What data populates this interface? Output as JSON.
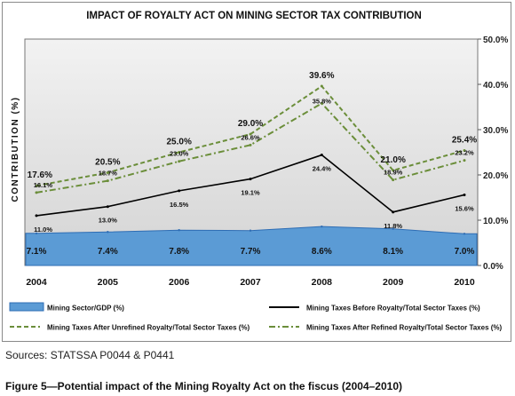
{
  "chart_data": {
    "type": "line",
    "title": "IMPACT OF ROYALTY ACT ON MINING SECTOR TAX CONTRIBUTION",
    "ylabel": "CONTRIBUTION (%)",
    "xlabel": "",
    "x": [
      "2004",
      "2005",
      "2006",
      "2007",
      "2008",
      "2009",
      "2010"
    ],
    "ylim": [
      0,
      50
    ],
    "yticks": [
      "0.0%",
      "10.0%",
      "20.0%",
      "30.0%",
      "40.0%",
      "50.0%"
    ],
    "ytick_values": [
      0,
      10,
      20,
      30,
      40,
      50
    ],
    "grid": false,
    "legend_position": "bottom",
    "series": [
      {
        "name": "Mining Sector/GDP (%)",
        "kind": "area",
        "color": "#5b9bd5",
        "values": [
          7.1,
          7.4,
          7.8,
          7.7,
          8.6,
          8.1,
          7.0
        ],
        "labels": [
          "7.1%",
          "7.4%",
          "7.8%",
          "7.7%",
          "8.6%",
          "8.1%",
          "7.0%"
        ]
      },
      {
        "name": "Mining Taxes Before Royalty/Total Sector Taxes (%)",
        "kind": "line-solid",
        "color": "#000000",
        "values": [
          11.0,
          13.0,
          16.5,
          19.1,
          24.4,
          11.8,
          15.6
        ],
        "labels": [
          "11.0%",
          "13.0%",
          "16.5%",
          "19.1%",
          "24.4%",
          "11.8%",
          "15.6%"
        ]
      },
      {
        "name": "Mining Taxes After Unrefined Royalty/Total Sector Taxes (%)",
        "kind": "line-dashed",
        "color": "#6b8e3a",
        "values": [
          17.6,
          20.5,
          25.0,
          29.0,
          39.6,
          21.0,
          25.4
        ],
        "labels": [
          "17.6%",
          "20.5%",
          "25.0%",
          "29.0%",
          "39.6%",
          "21.0%",
          "25.4%"
        ]
      },
      {
        "name": "Mining Taxes After Refined Royalty/Total Sector Taxes (%)",
        "kind": "line-dashdot",
        "color": "#6b8e3a",
        "values": [
          16.1,
          18.7,
          23.0,
          26.6,
          35.8,
          18.9,
          23.2
        ],
        "labels": [
          "16.1%",
          "18.7%",
          "23.0%",
          "26.6%",
          "35.8%",
          "18.9%",
          "23.2%"
        ]
      }
    ]
  },
  "colors": {
    "plot_background": "#d4d4d4",
    "area_fill": "#5b9bd5",
    "area_edge": "#2e6db4",
    "green_line": "#6b8e3a"
  },
  "sources": "Sources: STATSSA P0044 & P0441",
  "caption": "Figure 5—Potential impact of the Mining Royalty Act on the fiscus (2004–2010)"
}
